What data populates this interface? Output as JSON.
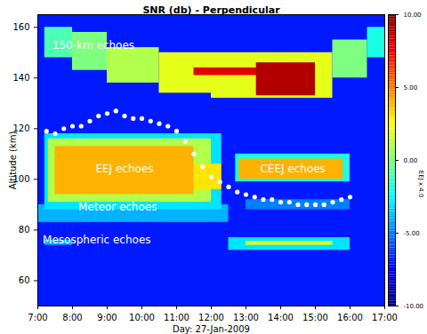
{
  "chart_data": {
    "type": "heatmap",
    "title": "SNR (db) - Perpendicular",
    "x_label": "Day: 27-Jan-2009",
    "y_label": "Altitude (km)",
    "xlim": [
      7,
      17
    ],
    "xticks": [
      {
        "value": 7,
        "label": "7:00"
      },
      {
        "value": 8,
        "label": "8:00"
      },
      {
        "value": 9,
        "label": "9:00"
      },
      {
        "value": 10,
        "label": "10:00"
      },
      {
        "value": 11,
        "label": "11:00"
      },
      {
        "value": 12,
        "label": "12:00"
      },
      {
        "value": 13,
        "label": "13:00"
      },
      {
        "value": 14,
        "label": "14:00"
      },
      {
        "value": 15,
        "label": "15:00"
      },
      {
        "value": 16,
        "label": "16:00"
      },
      {
        "value": 17,
        "label": "17:00"
      }
    ],
    "ylim": [
      50,
      165
    ],
    "yticks": [
      60,
      80,
      100,
      120,
      140,
      160
    ],
    "cells": [
      {
        "x1": 7,
        "x2": 17,
        "y1": 50,
        "y2": 165,
        "value": -7
      },
      {
        "x1": 7.2,
        "x2": 8.0,
        "y1": 148,
        "y2": 160,
        "value": -1
      },
      {
        "x1": 8.0,
        "x2": 9.0,
        "y1": 143,
        "y2": 158,
        "value": 0
      },
      {
        "x1": 9.0,
        "x2": 10.5,
        "y1": 138,
        "y2": 152,
        "value": 1
      },
      {
        "x1": 10.5,
        "x2": 12.0,
        "y1": 134,
        "y2": 150,
        "value": 2
      },
      {
        "x1": 12.0,
        "x2": 15.5,
        "y1": 132,
        "y2": 150,
        "value": 2
      },
      {
        "x1": 15.5,
        "x2": 16.5,
        "y1": 140,
        "y2": 155,
        "value": 0
      },
      {
        "x1": 16.5,
        "x2": 17.0,
        "y1": 148,
        "y2": 160,
        "value": -2
      },
      {
        "x1": 11.5,
        "x2": 13.5,
        "y1": 141,
        "y2": 144,
        "value": 8
      },
      {
        "x1": 13.3,
        "x2": 15.0,
        "y1": 133,
        "y2": 146,
        "value": 9
      },
      {
        "x1": 7.0,
        "x2": 12.5,
        "y1": 83,
        "y2": 90,
        "value": -4
      },
      {
        "x1": 13.0,
        "x2": 16.0,
        "y1": 88,
        "y2": 92,
        "value": -5
      },
      {
        "x1": 7.2,
        "x2": 12.3,
        "y1": 88,
        "y2": 118,
        "value": -3
      },
      {
        "x1": 7.3,
        "x2": 12.0,
        "y1": 91,
        "y2": 116,
        "value": 1
      },
      {
        "x1": 7.5,
        "x2": 11.5,
        "y1": 94,
        "y2": 113,
        "value": 4
      },
      {
        "x1": 11.5,
        "x2": 12.3,
        "y1": 96,
        "y2": 106,
        "value": 3
      },
      {
        "x1": 12.7,
        "x2": 16.0,
        "y1": 99,
        "y2": 110,
        "value": -2
      },
      {
        "x1": 12.8,
        "x2": 15.8,
        "y1": 100,
        "y2": 108,
        "value": 4
      },
      {
        "x1": 7.2,
        "x2": 8.0,
        "y1": 74,
        "y2": 76,
        "value": -4
      },
      {
        "x1": 12.5,
        "x2": 16.0,
        "y1": 72,
        "y2": 77,
        "value": -3
      },
      {
        "x1": 13.0,
        "x2": 15.5,
        "y1": 74,
        "y2": 75.5,
        "value": 2
      }
    ],
    "colorbar": {
      "range": [
        -10,
        10
      ],
      "ticks": [
        {
          "value": 10,
          "label": "10.00"
        },
        {
          "value": 5,
          "label": "5.00"
        },
        {
          "value": 0,
          "label": "0.00"
        },
        {
          "value": -5,
          "label": "-5.00"
        },
        {
          "value": -10,
          "label": "-10.00"
        }
      ]
    },
    "series": [
      {
        "name": "EEJ x 4.0",
        "color": "#ffffff",
        "marker": "circle",
        "x": [
          7.25,
          7.5,
          7.75,
          8.0,
          8.25,
          8.5,
          8.75,
          9.0,
          9.25,
          9.5,
          9.75,
          10.0,
          10.25,
          10.5,
          10.75,
          11.0,
          11.25,
          11.5,
          11.75,
          12.0,
          12.25,
          12.5,
          12.75,
          13.0,
          13.25,
          13.5,
          13.75,
          14.0,
          14.25,
          14.5,
          14.75,
          15.0,
          15.25,
          15.5,
          15.75,
          16.0
        ],
        "values": [
          119,
          118,
          120,
          121,
          121,
          123,
          125,
          126,
          127,
          125,
          124,
          124,
          123,
          122,
          121,
          119,
          115,
          110,
          105,
          101,
          99,
          97,
          95,
          94,
          93,
          92,
          92,
          91,
          91,
          90,
          90,
          90,
          90,
          91,
          92,
          93
        ]
      }
    ],
    "annotations": [
      {
        "text": "150-km echoes",
        "x": 8.6,
        "y": 153,
        "color": "#ffffff"
      },
      {
        "text": "EEJ echoes",
        "x": 9.5,
        "y": 104,
        "color": "#ffffff"
      },
      {
        "text": "CEEJ echoes",
        "x": 14.35,
        "y": 104,
        "color": "#ffffff"
      },
      {
        "text": "Meteor echoes",
        "x": 9.3,
        "y": 89,
        "color": "#ffffff"
      },
      {
        "text": "Mesospheric echoes",
        "x": 8.7,
        "y": 76,
        "color": "#ffffff"
      }
    ]
  }
}
